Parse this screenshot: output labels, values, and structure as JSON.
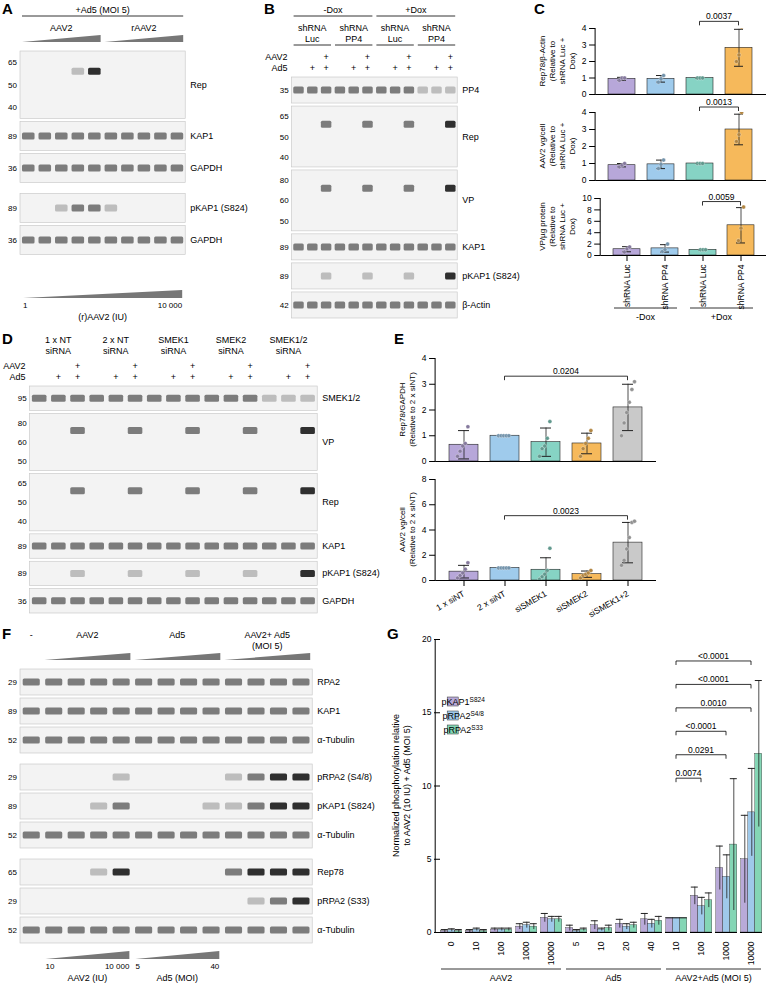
{
  "blots": [
    {
      "panel": "A",
      "header": [
        [
          {
            "text": "+Ad5 (MOI 5)",
            "span": [
              0,
              9
            ],
            "line": true
          }
        ],
        [
          {
            "text": "AAV2",
            "span": [
              0,
              4
            ],
            "ramp": true
          },
          {
            "text": "rAAV2",
            "span": [
              5,
              9
            ],
            "ramp": true
          }
        ]
      ],
      "plus_rows": [],
      "rows": [
        {
          "label": "Rep",
          "markers": [
            65,
            50,
            40
          ]
        },
        {
          "label": "KAP1",
          "markers": [
            89
          ]
        },
        {
          "label": "GAPDH",
          "markers": [
            36
          ]
        },
        {
          "label": "pKAP1 (S824)",
          "markers": [
            89
          ],
          "gap_before": true
        },
        {
          "label": "GAPDH",
          "markers": [
            36
          ]
        }
      ],
      "bottom": [
        {
          "span": [
            0,
            9
          ],
          "ramp": true,
          "left": "1",
          "right": "10 000",
          "text": "(r)AAV2 (IU)"
        }
      ]
    },
    {
      "panel": "B",
      "header": [
        [
          {
            "text": "-Dox",
            "span": [
              0,
              5
            ],
            "line": true
          },
          {
            "text": "+Dox",
            "span": [
              6,
              11
            ],
            "line": true
          }
        ],
        [
          {
            "text": "shRNA Luc",
            "span": [
              0,
              2
            ],
            "line": true
          },
          {
            "text": "shRNA PP4",
            "span": [
              3,
              5
            ],
            "line": true
          },
          {
            "text": "shRNA Luc",
            "span": [
              6,
              8
            ],
            "line": true
          },
          {
            "text": "shRNA PP4",
            "span": [
              9,
              11
            ],
            "line": true
          }
        ]
      ],
      "plus_rows": [
        {
          "label": "AAV2",
          "lanes": [
            null,
            null,
            "+",
            null,
            null,
            "+",
            null,
            null,
            "+",
            null,
            null,
            "+"
          ]
        },
        {
          "label": "Ad5",
          "lanes": [
            null,
            "+",
            "+",
            null,
            "+",
            "+",
            null,
            "+",
            "+",
            null,
            "+",
            "+"
          ]
        }
      ],
      "rows": [
        {
          "label": "PP4",
          "markers": [
            35
          ]
        },
        {
          "label": "Rep",
          "markers": [
            65,
            50,
            40
          ]
        },
        {
          "label": "VP",
          "markers": [
            80,
            60,
            50
          ]
        },
        {
          "label": "KAP1",
          "markers": [
            89
          ]
        },
        {
          "label": "pKAP1 (S824)",
          "markers": [
            89
          ]
        },
        {
          "label": "β-Actin",
          "markers": [
            42
          ]
        }
      ],
      "bottom": []
    },
    {
      "panel": "D",
      "header": [
        [
          {
            "text": "1 x NT siRNA",
            "span": [
              0,
              2
            ]
          },
          {
            "text": "2 x NT siRNA",
            "span": [
              3,
              5
            ]
          },
          {
            "text": "SMEK1 siRNA",
            "span": [
              6,
              8
            ]
          },
          {
            "text": "SMEK2 siRNA",
            "span": [
              9,
              11
            ]
          },
          {
            "text": "SMEK1/2 siRNA",
            "span": [
              12,
              14
            ]
          }
        ]
      ],
      "plus_rows": [
        {
          "label": "AAV2",
          "lanes": [
            null,
            null,
            "+",
            null,
            null,
            "+",
            null,
            null,
            "+",
            null,
            null,
            "+",
            null,
            null,
            "+"
          ]
        },
        {
          "label": "Ad5",
          "lanes": [
            null,
            "+",
            "+",
            null,
            "+",
            "+",
            null,
            "+",
            "+",
            null,
            "+",
            "+",
            null,
            "+",
            "+"
          ]
        }
      ],
      "rows": [
        {
          "label": "SMEK1/2",
          "markers": [
            95
          ]
        },
        {
          "label": "VP",
          "markers": [
            80,
            60,
            50
          ]
        },
        {
          "label": "Rep",
          "markers": [
            65,
            50,
            40
          ]
        },
        {
          "label": "KAP1",
          "markers": [
            89
          ]
        },
        {
          "label": "pKAP1 (S824)",
          "markers": [
            89
          ]
        },
        {
          "label": "GAPDH",
          "markers": [
            36
          ]
        }
      ],
      "bottom": []
    },
    {
      "panel": "F",
      "header": [
        [
          {
            "text": "-",
            "span": [
              0,
              0
            ]
          },
          {
            "text": "AAV2",
            "span": [
              1,
              4
            ],
            "ramp": true
          },
          {
            "text": "Ad5",
            "span": [
              5,
              8
            ],
            "ramp": true
          },
          {
            "text": "AAV2+ Ad5 (MOI 5)",
            "span": [
              9,
              12
            ],
            "ramp": true
          }
        ]
      ],
      "plus_rows": [],
      "rows": [
        {
          "label": "RPA2",
          "markers": [
            29
          ]
        },
        {
          "label": "KAP1",
          "markers": [
            89
          ]
        },
        {
          "label": "α-Tubulin",
          "markers": [
            52
          ]
        },
        {
          "label": "pRPA2 (S4/8)",
          "markers": [
            29
          ],
          "gap_before": true
        },
        {
          "label": "pKAP1 (S824)",
          "markers": [
            89
          ]
        },
        {
          "label": "α-Tubulin",
          "markers": [
            52
          ]
        },
        {
          "label": "Rep78",
          "markers": [
            65
          ],
          "gap_before": true
        },
        {
          "label": "pRPA2 (S33)",
          "markers": [
            29
          ]
        },
        {
          "label": "α-Tubulin",
          "markers": [
            52
          ]
        }
      ],
      "bottom": [
        {
          "span": [
            1,
            4
          ],
          "ramp": true,
          "left": "10",
          "right": "10 000",
          "text": "AAV2 (IU)"
        },
        {
          "span": [
            5,
            8
          ],
          "ramp": true,
          "left": "5",
          "right": "40",
          "text": "Ad5 (MOI)"
        }
      ]
    }
  ],
  "chart_data": [
    {
      "panel": "C",
      "type": "bar",
      "y_label": "Rep78/β-Actin (Relative to shRNA Luc + Dox)",
      "categories": [
        "shRNA Luc",
        "shRNA PP4",
        "shRNA Luc",
        "shRNA PP4"
      ],
      "groups": [
        "-Dox",
        "-Dox",
        "+Dox",
        "+Dox"
      ],
      "colors": [
        "#b7a7d9",
        "#9fcbec",
        "#86d3c4",
        "#f6b95b"
      ],
      "values": [
        0.95,
        0.95,
        1.0,
        2.83
      ],
      "errors": [
        0.09,
        0.2,
        0,
        1.12
      ],
      "points": [
        [
          0.85,
          1.0,
          1.0
        ],
        [
          0.75,
          0.95,
          1.15
        ],
        [
          1,
          1,
          1
        ],
        [
          2.0,
          2.4,
          4.1
        ]
      ],
      "ylim": [
        0,
        4
      ],
      "yticks": [
        0,
        1,
        2,
        3,
        4
      ],
      "tick_labels": "y",
      "comparisons": [
        {
          "pair": [
            2,
            3
          ],
          "label": "0.0037"
        }
      ]
    },
    {
      "type": "bar",
      "y_label": "AAV2 vg/cell (Relative to shRNA Luc + Dox)",
      "categories": [
        "shRNA Luc",
        "shRNA PP4",
        "shRNA Luc",
        "shRNA PP4"
      ],
      "groups": [
        "-Dox",
        "-Dox",
        "+Dox",
        "+Dox"
      ],
      "colors": [
        "#b7a7d9",
        "#9fcbec",
        "#86d3c4",
        "#f6b95b"
      ],
      "values": [
        0.9,
        0.95,
        1.0,
        3.0
      ],
      "errors": [
        0.1,
        0.25,
        0,
        0.9
      ],
      "points": [
        [
          0.8,
          0.9,
          1.0
        ],
        [
          0.7,
          0.95,
          1.2
        ],
        [
          1,
          1,
          1
        ],
        [
          2.3,
          2.7,
          4.0
        ]
      ],
      "ylim": [
        0,
        4
      ],
      "yticks": [
        0,
        1,
        2,
        3,
        4
      ],
      "tick_labels": "y",
      "comparisons": [
        {
          "pair": [
            2,
            3
          ],
          "label": "0.0013"
        }
      ]
    },
    {
      "type": "bar",
      "y_label": "VP/µg protein (Relative to shRNA Luc + Dox)",
      "categories": [
        "shRNA Luc",
        "shRNA PP4",
        "shRNA Luc",
        "shRNA PP4"
      ],
      "groups": [
        "-Dox",
        "-Dox",
        "+Dox",
        "+Dox"
      ],
      "colors": [
        "#b7a7d9",
        "#9fcbec",
        "#86d3c4",
        "#f6b95b"
      ],
      "values": [
        1.1,
        1.25,
        1.0,
        5.3
      ],
      "errors": [
        0.45,
        0.65,
        0,
        3.1
      ],
      "points": [
        [
          0.6,
          1.2,
          1.5
        ],
        [
          0.7,
          1.05,
          2.0
        ],
        [
          1,
          1,
          1
        ],
        [
          2.6,
          4.8,
          8.5
        ]
      ],
      "ylim": [
        0,
        10
      ],
      "yticks": [
        0,
        2,
        4,
        6,
        8,
        10
      ],
      "comparisons": [
        {
          "pair": [
            2,
            3
          ],
          "label": "0.0059"
        }
      ]
    },
    {
      "panel": "E",
      "type": "bar",
      "y_label": "Rep78/GAPDH (Relative to 2 x siNT)",
      "categories": [
        "1 x siNT",
        "2 x siNT",
        "siSMEK1",
        "siSMEK2",
        "siSMEK1+2"
      ],
      "colors": [
        "#b7a7d9",
        "#9fcbec",
        "#86d3c4",
        "#f6b95b",
        "#c9c9c9"
      ],
      "values": [
        0.65,
        1.0,
        0.75,
        0.7,
        2.1
      ],
      "errors": [
        0.55,
        0,
        0.55,
        0.4,
        0.9
      ],
      "points": [
        [
          0.2,
          0.4,
          0.6,
          0.7,
          1.35
        ],
        [
          1,
          1,
          1,
          1,
          1
        ],
        [
          0.2,
          0.5,
          0.6,
          0.9,
          1.55
        ],
        [
          0.2,
          0.5,
          0.7,
          0.9,
          1.2
        ],
        [
          1.0,
          1.5,
          1.9,
          2.3,
          2.8,
          3.1
        ]
      ],
      "ylim": [
        0,
        4
      ],
      "yticks": [
        0,
        1,
        2,
        3,
        4
      ],
      "tick_labels": "y",
      "comparisons": [
        {
          "pair": [
            1,
            4
          ],
          "label": "0.0204"
        }
      ]
    },
    {
      "type": "bar",
      "y_label": "AAV2 vg/cell (Relative to 2 x siNT)",
      "categories": [
        "1 x siNT",
        "2 x siNT",
        "siSMEK1",
        "siSMEK2",
        "siSMEK1+2"
      ],
      "colors": [
        "#b7a7d9",
        "#9fcbec",
        "#86d3c4",
        "#f6b95b",
        "#c9c9c9"
      ],
      "values": [
        0.7,
        1.0,
        0.85,
        0.5,
        3.0
      ],
      "errors": [
        0.5,
        0,
        0.95,
        0.25,
        1.6
      ],
      "points": [
        [
          0.2,
          0.4,
          0.6,
          0.9,
          1.4
        ],
        [
          1,
          1,
          1,
          1,
          1
        ],
        [
          0.1,
          0.3,
          0.5,
          0.8,
          2.55
        ],
        [
          0.2,
          0.4,
          0.5,
          0.6,
          0.8
        ],
        [
          1.2,
          1.6,
          2.5,
          3.4,
          4.6,
          4.7
        ]
      ],
      "ylim": [
        0,
        8
      ],
      "yticks": [
        0,
        2,
        4,
        6,
        8
      ],
      "comparisons": [
        {
          "pair": [
            1,
            4
          ],
          "label": "0.0023"
        }
      ]
    },
    {
      "panel": "G",
      "type": "bar",
      "y_label": "Normalized phosphorylation relative to AAV2 (10 IU) + Ad5 (MOI 5)",
      "categories": [
        "0",
        "10",
        "100",
        "1000",
        "10000",
        "5",
        "10",
        "20",
        "40",
        "10",
        "100",
        "1000",
        "10000"
      ],
      "groups": [
        "AAV2",
        "AAV2",
        "AAV2",
        "AAV2",
        "AAV2",
        "Ad5",
        "Ad5",
        "Ad5",
        "Ad5",
        "AAV2+Ad5 (MOI 5)",
        "AAV2+Ad5 (MOI 5)",
        "AAV2+Ad5 (MOI 5)",
        "AAV2+Ad5 (MOI 5)"
      ],
      "series": [
        {
          "name": "pKAP1",
          "superscript": "S824",
          "color": "#b9aad8",
          "values": [
            0.1,
            0.1,
            0.2,
            0.4,
            1.0,
            0.3,
            0.5,
            0.6,
            0.9,
            1,
            2.5,
            4.4,
            5.0
          ],
          "errors": [
            0.1,
            0.1,
            0.1,
            0.2,
            0.3,
            0.2,
            0.3,
            0.3,
            0.4,
            0,
            0.6,
            1.5,
            3.0
          ]
        },
        {
          "name": "pRPA2",
          "superscript": "S4/8",
          "color": "#9fc9ea",
          "values": [
            0.15,
            0.2,
            0.2,
            0.5,
            0.9,
            0.1,
            0.2,
            0.4,
            0.6,
            1,
            1.8,
            3.8,
            8.2
          ],
          "errors": [
            0.1,
            0.1,
            0.1,
            0.2,
            0.2,
            0.1,
            0.1,
            0.2,
            0.3,
            0,
            0.6,
            1.5,
            3.0
          ]
        },
        {
          "name": "pRPA2",
          "superscript": "S33",
          "color": "#84d6b5",
          "values": [
            0.1,
            0.1,
            0.2,
            0.4,
            0.9,
            0.2,
            0.3,
            0.5,
            0.8,
            1,
            2.2,
            6.0,
            12.2
          ],
          "errors": [
            0.1,
            0.1,
            0.1,
            0.2,
            0.2,
            0.1,
            0.2,
            0.2,
            0.3,
            0,
            0.5,
            4.5,
            5.0
          ]
        }
      ],
      "ylim": [
        0,
        20
      ],
      "yticks": [
        0,
        5,
        10,
        15,
        20
      ],
      "legend": "top-left",
      "comparisons": [
        {
          "pair": [
            9,
            10
          ],
          "label": "0.0074"
        },
        {
          "pair": [
            9,
            11
          ],
          "label": "0.0291"
        },
        {
          "pair": [
            9,
            11
          ],
          "label": "<0.0001"
        },
        {
          "pair": [
            9,
            12
          ],
          "label": "0.0010"
        },
        {
          "pair": [
            9,
            12
          ],
          "label": "<0.0001"
        },
        {
          "pair": [
            9,
            12
          ],
          "label": "<0.0001"
        }
      ]
    }
  ]
}
